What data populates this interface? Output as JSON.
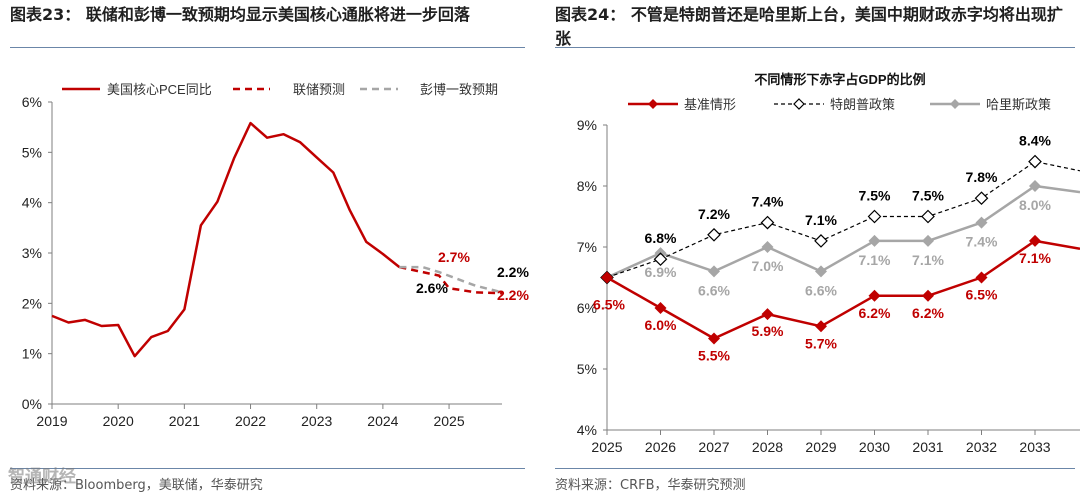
{
  "left_panel": {
    "title": "图表23：  联储和彭博一致预期均显示美国核心通胀将进一步回落",
    "source": "资料来源：Bloomberg，美联储，华泰研究"
  },
  "right_panel": {
    "title": "图表24：  不管是特朗普还是哈里斯上台，美国中期财政赤字均将出现扩张",
    "source": "资料来源：CRFB，华泰研究预测"
  },
  "watermark": "智通财经",
  "colors": {
    "red": "#c00000",
    "gray": "#a6a6a6",
    "black": "#000000",
    "rule": "#6b86a8"
  },
  "chart_data": [
    {
      "type": "line",
      "title": "",
      "xlabel": "",
      "ylabel": "",
      "ylim": [
        0,
        6
      ],
      "xlim": [
        2019,
        2025.8
      ],
      "y_ticks": [
        "0%",
        "1%",
        "2%",
        "3%",
        "4%",
        "5%",
        "6%"
      ],
      "x_ticks": [
        "2019",
        "2020",
        "2021",
        "2022",
        "2023",
        "2024",
        "2025"
      ],
      "legend": [
        "美国核心PCE同比",
        "联储预测",
        "彭博一致预期"
      ],
      "series": [
        {
          "name": "美国核心PCE同比",
          "style": "solid",
          "color": "#c00000",
          "x": [
            2019.0,
            2019.25,
            2019.5,
            2019.75,
            2020.0,
            2020.25,
            2020.5,
            2020.75,
            2021.0,
            2021.25,
            2021.5,
            2021.75,
            2022.0,
            2022.25,
            2022.5,
            2022.75,
            2023.0,
            2023.25,
            2023.5,
            2023.75,
            2024.0,
            2024.25
          ],
          "values": [
            1.75,
            1.62,
            1.67,
            1.55,
            1.57,
            0.95,
            1.33,
            1.45,
            1.88,
            3.55,
            4.02,
            4.88,
            5.58,
            5.29,
            5.36,
            5.2,
            4.9,
            4.6,
            3.85,
            3.22,
            2.98,
            2.72
          ]
        },
        {
          "name": "联储预测",
          "style": "dashed",
          "color": "#c00000",
          "x": [
            2024.25,
            2024.6,
            2024.85,
            2025.0,
            2025.4,
            2025.8
          ],
          "values": [
            2.72,
            2.62,
            2.55,
            2.3,
            2.22,
            2.2
          ]
        },
        {
          "name": "彭博一致预期",
          "style": "dashed",
          "color": "#a6a6a6",
          "x": [
            2024.25,
            2024.6,
            2024.85,
            2025.4,
            2025.8
          ],
          "values": [
            2.72,
            2.72,
            2.62,
            2.35,
            2.22
          ]
        }
      ],
      "annotations": [
        {
          "text": "2.7%",
          "color": "#c00000"
        },
        {
          "text": "2.6%",
          "color": "#000000"
        },
        {
          "text": "2.2%",
          "color": "#000000"
        },
        {
          "text": "2.2%",
          "color": "#c00000"
        }
      ]
    },
    {
      "type": "line",
      "title": "不同情形下赤字占GDP的比例",
      "xlabel": "",
      "ylabel": "",
      "ylim": [
        4,
        9
      ],
      "categories": [
        "2025",
        "2026",
        "2027",
        "2028",
        "2029",
        "2030",
        "2031",
        "2032",
        "2033"
      ],
      "y_ticks": [
        "4%",
        "5%",
        "6%",
        "7%",
        "8%",
        "9%"
      ],
      "series": [
        {
          "name": "基准情形",
          "style": "solid",
          "marker": "diamond-filled",
          "color": "#c00000",
          "values": [
            6.5,
            6.0,
            5.5,
            5.9,
            5.7,
            6.2,
            6.2,
            6.5,
            7.1
          ],
          "labels": [
            "6.5%",
            "6.0%",
            "5.5%",
            "5.9%",
            "5.7%",
            "6.2%",
            "6.2%",
            "6.5%",
            "7.1%"
          ]
        },
        {
          "name": "特朗普政策",
          "style": "dashed",
          "marker": "diamond-open",
          "color": "#000000",
          "values": [
            6.5,
            6.8,
            7.2,
            7.4,
            7.1,
            7.5,
            7.5,
            7.8,
            8.4
          ],
          "labels": [
            "",
            "6.8%",
            "7.2%",
            "7.4%",
            "7.1%",
            "7.5%",
            "7.5%",
            "7.8%",
            "8.4%"
          ]
        },
        {
          "name": "哈里斯政策",
          "style": "solid",
          "marker": "diamond-filled",
          "color": "#a6a6a6",
          "values": [
            6.5,
            6.9,
            6.6,
            7.0,
            6.6,
            7.1,
            7.1,
            7.4,
            8.0
          ],
          "labels": [
            "",
            "6.9%",
            "6.6%",
            "7.0%",
            "6.6%",
            "7.1%",
            "7.1%",
            "7.4%",
            "8.0%"
          ]
        }
      ]
    }
  ]
}
